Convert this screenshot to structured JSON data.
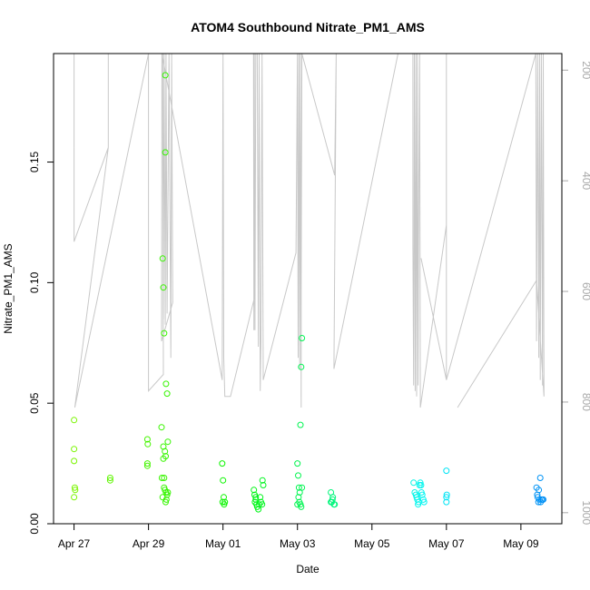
{
  "chart_data": {
    "type": "scatter",
    "title": "ATOM4 Southbound Nitrate_PM1_AMS",
    "xlabel": "Date",
    "ylabel": "Nitrate_PM1_AMS",
    "x_ticks": [
      "Apr 27",
      "Apr 29",
      "May 01",
      "May 03",
      "May 05",
      "May 07",
      "May 09"
    ],
    "x_range_days": [
      "Apr 26 19:30",
      "May 10 02:00"
    ],
    "xlim_days_since_apr27": [
      -0.55,
      13.1
    ],
    "ylim": [
      0,
      0.195
    ],
    "y_ticks": [
      "0.00",
      "0.05",
      "0.10",
      "0.15"
    ],
    "y_tick_values": [
      0,
      0.05,
      0.1,
      0.15
    ],
    "y2_label": "",
    "y2_ticks": [
      "200",
      "400",
      "600",
      "800",
      "1000"
    ],
    "y2_tick_values": [
      200,
      400,
      600,
      800,
      1000
    ],
    "y2_range_top_to_bottom": [
      170,
      1020
    ],
    "y2_reversed": true,
    "grid": false,
    "legend": "none",
    "point_color_scale": "green-to-blue by date",
    "secondary_line_color": "#c8c8c8",
    "series": [
      {
        "name": "",
        "points": [
          {
            "x": 0.0,
            "y": 0.043
          },
          {
            "x": 0.0,
            "y": 0.031
          },
          {
            "x": 0.0,
            "y": 0.026
          },
          {
            "x": 0.02,
            "y": 0.015
          },
          {
            "x": 0.03,
            "y": 0.014
          },
          {
            "x": 0.0,
            "y": 0.011
          },
          {
            "x": 0.97,
            "y": 0.019
          },
          {
            "x": 0.97,
            "y": 0.018
          },
          {
            "x": 1.97,
            "y": 0.035
          },
          {
            "x": 1.98,
            "y": 0.033
          },
          {
            "x": 1.97,
            "y": 0.025
          },
          {
            "x": 1.97,
            "y": 0.024
          },
          {
            "x": 2.38,
            "y": 0.11
          },
          {
            "x": 2.4,
            "y": 0.098
          },
          {
            "x": 2.42,
            "y": 0.079
          },
          {
            "x": 2.45,
            "y": 0.186
          },
          {
            "x": 2.45,
            "y": 0.154
          },
          {
            "x": 2.47,
            "y": 0.058
          },
          {
            "x": 2.5,
            "y": 0.054
          },
          {
            "x": 2.35,
            "y": 0.04
          },
          {
            "x": 2.4,
            "y": 0.032
          },
          {
            "x": 2.44,
            "y": 0.03
          },
          {
            "x": 2.46,
            "y": 0.028
          },
          {
            "x": 2.52,
            "y": 0.034
          },
          {
            "x": 2.4,
            "y": 0.027
          },
          {
            "x": 2.36,
            "y": 0.019
          },
          {
            "x": 2.42,
            "y": 0.019
          },
          {
            "x": 2.42,
            "y": 0.015
          },
          {
            "x": 2.47,
            "y": 0.013
          },
          {
            "x": 2.5,
            "y": 0.012
          },
          {
            "x": 2.44,
            "y": 0.014
          },
          {
            "x": 2.38,
            "y": 0.011
          },
          {
            "x": 2.48,
            "y": 0.01
          },
          {
            "x": 2.46,
            "y": 0.009
          },
          {
            "x": 2.52,
            "y": 0.013
          },
          {
            "x": 3.98,
            "y": 0.025
          },
          {
            "x": 4.0,
            "y": 0.018
          },
          {
            "x": 4.02,
            "y": 0.011
          },
          {
            "x": 3.99,
            "y": 0.009
          },
          {
            "x": 4.05,
            "y": 0.009
          },
          {
            "x": 4.03,
            "y": 0.008
          },
          {
            "x": 4.83,
            "y": 0.014
          },
          {
            "x": 4.85,
            "y": 0.012
          },
          {
            "x": 4.88,
            "y": 0.011
          },
          {
            "x": 4.86,
            "y": 0.009
          },
          {
            "x": 4.9,
            "y": 0.008
          },
          {
            "x": 4.92,
            "y": 0.007
          },
          {
            "x": 4.95,
            "y": 0.006
          },
          {
            "x": 4.97,
            "y": 0.008
          },
          {
            "x": 5.0,
            "y": 0.011
          },
          {
            "x": 5.02,
            "y": 0.009
          },
          {
            "x": 5.05,
            "y": 0.008
          },
          {
            "x": 5.06,
            "y": 0.018
          },
          {
            "x": 5.08,
            "y": 0.016
          },
          {
            "x": 4.88,
            "y": 0.01
          },
          {
            "x": 6.0,
            "y": 0.025
          },
          {
            "x": 6.02,
            "y": 0.02
          },
          {
            "x": 6.04,
            "y": 0.015
          },
          {
            "x": 6.06,
            "y": 0.013
          },
          {
            "x": 6.03,
            "y": 0.011
          },
          {
            "x": 6.05,
            "y": 0.009
          },
          {
            "x": 6.08,
            "y": 0.008
          },
          {
            "x": 6.1,
            "y": 0.007
          },
          {
            "x": 6.0,
            "y": 0.008
          },
          {
            "x": 6.12,
            "y": 0.015
          },
          {
            "x": 6.08,
            "y": 0.041
          },
          {
            "x": 6.1,
            "y": 0.065
          },
          {
            "x": 6.12,
            "y": 0.077
          },
          {
            "x": 6.9,
            "y": 0.013
          },
          {
            "x": 6.95,
            "y": 0.011
          },
          {
            "x": 6.92,
            "y": 0.009
          },
          {
            "x": 6.98,
            "y": 0.008
          },
          {
            "x": 6.94,
            "y": 0.01
          },
          {
            "x": 6.9,
            "y": 0.009
          },
          {
            "x": 7.0,
            "y": 0.008
          },
          {
            "x": 9.12,
            "y": 0.017
          },
          {
            "x": 9.15,
            "y": 0.013
          },
          {
            "x": 9.18,
            "y": 0.012
          },
          {
            "x": 9.2,
            "y": 0.011
          },
          {
            "x": 9.22,
            "y": 0.01
          },
          {
            "x": 9.25,
            "y": 0.009
          },
          {
            "x": 9.28,
            "y": 0.016
          },
          {
            "x": 9.3,
            "y": 0.017
          },
          {
            "x": 9.32,
            "y": 0.016
          },
          {
            "x": 9.35,
            "y": 0.012
          },
          {
            "x": 9.38,
            "y": 0.01
          },
          {
            "x": 9.4,
            "y": 0.009
          },
          {
            "x": 9.24,
            "y": 0.008
          },
          {
            "x": 9.33,
            "y": 0.013
          },
          {
            "x": 10.0,
            "y": 0.022
          },
          {
            "x": 10.01,
            "y": 0.012
          },
          {
            "x": 10.0,
            "y": 0.011
          },
          {
            "x": 10.0,
            "y": 0.009
          },
          {
            "x": 12.42,
            "y": 0.015
          },
          {
            "x": 12.48,
            "y": 0.014
          },
          {
            "x": 12.52,
            "y": 0.019
          },
          {
            "x": 12.45,
            "y": 0.011
          },
          {
            "x": 12.5,
            "y": 0.01
          },
          {
            "x": 12.55,
            "y": 0.01
          },
          {
            "x": 12.58,
            "y": 0.01
          },
          {
            "x": 12.47,
            "y": 0.009
          },
          {
            "x": 12.53,
            "y": 0.009
          },
          {
            "x": 12.6,
            "y": 0.01
          },
          {
            "x": 12.44,
            "y": 0.012
          }
        ]
      }
    ],
    "secondary_series": {
      "name": "",
      "axis": "y2",
      "points": [
        [
          0.0,
          170
        ],
        [
          0.0,
          510
        ],
        [
          0.92,
          340
        ],
        [
          0.92,
          170
        ],
        [
          0.92,
          340
        ],
        [
          0.02,
          810
        ],
        [
          2.0,
          170
        ],
        [
          2.0,
          780
        ],
        [
          2.4,
          750
        ],
        [
          2.38,
          170
        ],
        [
          2.4,
          650
        ],
        [
          2.42,
          170
        ],
        [
          2.45,
          660
        ],
        [
          2.47,
          170
        ],
        [
          2.5,
          640
        ],
        [
          2.55,
          170
        ],
        [
          2.6,
          720
        ],
        [
          2.62,
          170
        ],
        [
          2.65,
          620
        ],
        [
          2.35,
          690
        ],
        [
          2.36,
          170
        ],
        [
          3.98,
          760
        ],
        [
          4.0,
          170
        ],
        [
          4.02,
          720
        ],
        [
          4.05,
          790
        ],
        [
          4.15,
          790
        ],
        [
          4.2,
          790
        ],
        [
          4.85,
          610
        ],
        [
          4.82,
          170
        ],
        [
          4.83,
          670
        ],
        [
          4.84,
          170
        ],
        [
          4.86,
          670
        ],
        [
          4.88,
          170
        ],
        [
          4.92,
          170
        ],
        [
          4.95,
          700
        ],
        [
          4.97,
          170
        ],
        [
          5.0,
          780
        ],
        [
          5.02,
          690
        ],
        [
          5.05,
          170
        ],
        [
          5.08,
          760
        ],
        [
          5.96,
          530
        ],
        [
          6.0,
          170
        ],
        [
          6.02,
          720
        ],
        [
          6.04,
          170
        ],
        [
          6.06,
          740
        ],
        [
          6.08,
          170
        ],
        [
          6.1,
          810
        ],
        [
          6.1,
          600
        ],
        [
          6.12,
          170
        ],
        [
          7.0,
          390
        ],
        [
          7.04,
          170
        ],
        [
          6.98,
          740
        ],
        [
          8.7,
          170
        ],
        [
          9.1,
          170
        ],
        [
          9.1,
          520
        ],
        [
          9.12,
          770
        ],
        [
          9.14,
          170
        ],
        [
          9.16,
          780
        ],
        [
          9.18,
          170
        ],
        [
          9.2,
          790
        ],
        [
          9.22,
          170
        ],
        [
          9.24,
          770
        ],
        [
          9.25,
          510
        ],
        [
          9.28,
          170
        ],
        [
          9.3,
          810
        ],
        [
          10.0,
          480
        ],
        [
          10.0,
          170
        ],
        [
          10.0,
          760
        ],
        [
          9.32,
          540
        ],
        [
          10.0,
          760
        ],
        [
          12.4,
          170
        ],
        [
          12.42,
          690
        ],
        [
          12.45,
          170
        ],
        [
          12.48,
          720
        ],
        [
          12.5,
          170
        ],
        [
          12.52,
          760
        ],
        [
          12.55,
          170
        ],
        [
          12.58,
          770
        ],
        [
          12.6,
          170
        ],
        [
          12.62,
          790
        ],
        [
          12.42,
          580
        ],
        [
          10.3,
          810
        ]
      ]
    }
  }
}
